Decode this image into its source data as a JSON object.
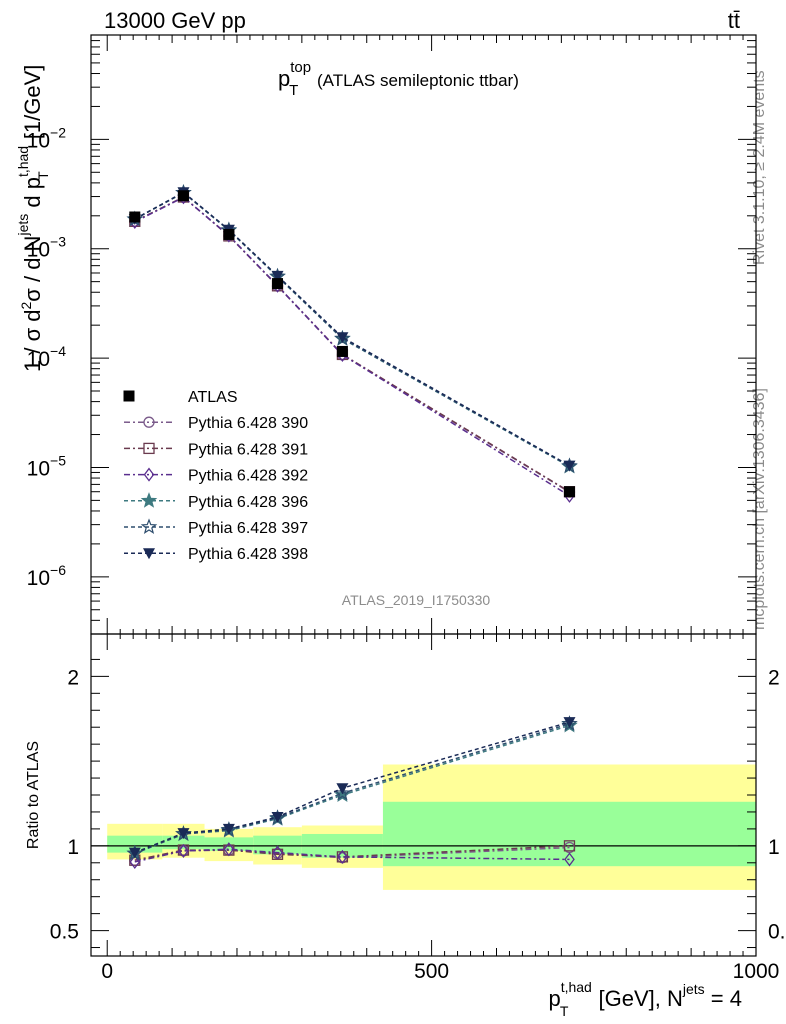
{
  "header": {
    "left": "13000 GeV pp",
    "right": "tt̄"
  },
  "side_labels": {
    "rivet": "Rivet 3.1.10, ≥ 2.4M events",
    "mcplots": "mcplots.cern.ch [arXiv:1306.3436]"
  },
  "watermark": "ATLAS_2019_I1750330",
  "chart_data": [
    {
      "type": "line",
      "title": {
        "main": "p",
        "sub": "T",
        "sup": "top",
        "rest": " (ATLAS semileptonic ttbar)"
      },
      "ylabel": "1 / σ d²σ / d Nʲᵉᵗˢ d p_T^{t,had} [1/GeV]",
      "yscale": "log",
      "ylim": [
        3e-07,
        0.09
      ],
      "xlim": [
        -25,
        1000
      ],
      "yticks": [
        {
          "value": 1e-06,
          "base": "10",
          "exp": "−6"
        },
        {
          "value": 1e-05,
          "base": "10",
          "exp": "−5"
        },
        {
          "value": 0.0001,
          "base": "10",
          "exp": "−4"
        },
        {
          "value": 0.001,
          "base": "10",
          "exp": "−3"
        },
        {
          "value": 0.01,
          "base": "10",
          "exp": "−2"
        }
      ],
      "legend_position": "middle-left",
      "x": [
        42.5,
        117.5,
        187.5,
        262.5,
        362.5,
        712.5
      ],
      "reference": {
        "name": "ATLAS",
        "color": "#000000",
        "values": [
          0.00195,
          0.00305,
          0.00135,
          0.00048,
          0.000115,
          6e-06
        ]
      },
      "series": [
        {
          "name": "Pythia 6.428 390",
          "color": "#7a5a8a",
          "dash": "6,3,2,3",
          "marker": "circle",
          "values": [
            0.00178,
            0.00295,
            0.00131,
            0.000455,
            0.000107,
            5.95e-06
          ]
        },
        {
          "name": "Pythia 6.428 391",
          "color": "#6a3a4e",
          "dash": "6,3,2,3",
          "marker": "square",
          "values": [
            0.00178,
            0.00297,
            0.00131,
            0.000458,
            0.000108,
            6e-06
          ]
        },
        {
          "name": "Pythia 6.428 392",
          "color": "#5a2e8e",
          "dash": "6,3,2,3",
          "marker": "diamond",
          "values": [
            0.00176,
            0.00295,
            0.00132,
            0.00046,
            0.000107,
            5.5e-06
          ]
        },
        {
          "name": "Pythia 6.428 396",
          "color": "#3e7a80",
          "dash": "4,3",
          "marker": "star",
          "values": [
            0.00186,
            0.00325,
            0.00147,
            0.000555,
            0.00015,
            1.02e-05
          ]
        },
        {
          "name": "Pythia 6.428 397",
          "color": "#2e4e6e",
          "dash": "4,3",
          "marker": "star-open",
          "values": [
            0.00186,
            0.00325,
            0.00148,
            0.000558,
            0.000151,
            1.03e-05
          ]
        },
        {
          "name": "Pythia 6.428 398",
          "color": "#1a2a56",
          "dash": "4,3",
          "marker": "triangle-down",
          "values": [
            0.00187,
            0.00328,
            0.00149,
            0.000565,
            0.000155,
            1.04e-05
          ]
        }
      ]
    },
    {
      "type": "line",
      "ylabel": "Ratio to ATLAS",
      "ylim": [
        0.35,
        2.25
      ],
      "xlim": [
        -25,
        1000
      ],
      "yticks": [
        {
          "value": 0.5,
          "label": "0.5"
        },
        {
          "value": 1,
          "label": "1"
        },
        {
          "value": 2,
          "label": "2"
        }
      ],
      "xticks": [
        {
          "value": 0,
          "label": "0"
        },
        {
          "value": 500,
          "label": "500"
        },
        {
          "value": 1000,
          "label": "1000"
        }
      ],
      "xlabel": {
        "main": "p",
        "sub": "T",
        "sup": "t,had",
        "mid": " [GeV], N",
        "sup2": "jets",
        "rest": " = 4"
      },
      "x": [
        42.5,
        117.5,
        187.5,
        262.5,
        362.5,
        712.5
      ],
      "bins": [
        [
          0,
          85
        ],
        [
          85,
          150
        ],
        [
          150,
          225
        ],
        [
          225,
          300
        ],
        [
          300,
          425
        ],
        [
          425,
          1000
        ]
      ],
      "band_inner": [
        [
          0.96,
          1.06
        ],
        [
          0.98,
          1.06
        ],
        [
          0.97,
          1.05
        ],
        [
          0.95,
          1.06
        ],
        [
          0.93,
          1.07
        ],
        [
          0.88,
          1.26
        ]
      ],
      "band_outer": [
        [
          0.92,
          1.13
        ],
        [
          0.93,
          1.13
        ],
        [
          0.91,
          1.1
        ],
        [
          0.89,
          1.11
        ],
        [
          0.87,
          1.12
        ],
        [
          0.74,
          1.48
        ]
      ],
      "band_colors": {
        "inner": "#99ff99",
        "outer": "#ffff99"
      },
      "series": [
        {
          "name": "Pythia 6.428 390",
          "values": [
            0.915,
            0.97,
            0.975,
            0.955,
            0.93,
            0.99
          ]
        },
        {
          "name": "Pythia 6.428 391",
          "values": [
            0.915,
            0.975,
            0.975,
            0.95,
            0.935,
            1.0
          ]
        },
        {
          "name": "Pythia 6.428 392",
          "values": [
            0.905,
            0.97,
            0.98,
            0.96,
            0.935,
            0.92
          ]
        },
        {
          "name": "Pythia 6.428 396",
          "values": [
            0.955,
            1.07,
            1.09,
            1.16,
            1.3,
            1.71
          ]
        },
        {
          "name": "Pythia 6.428 397",
          "values": [
            0.955,
            1.07,
            1.095,
            1.165,
            1.31,
            1.72
          ]
        },
        {
          "name": "Pythia 6.428 398",
          "values": [
            0.96,
            1.075,
            1.1,
            1.17,
            1.34,
            1.73
          ]
        }
      ]
    }
  ]
}
